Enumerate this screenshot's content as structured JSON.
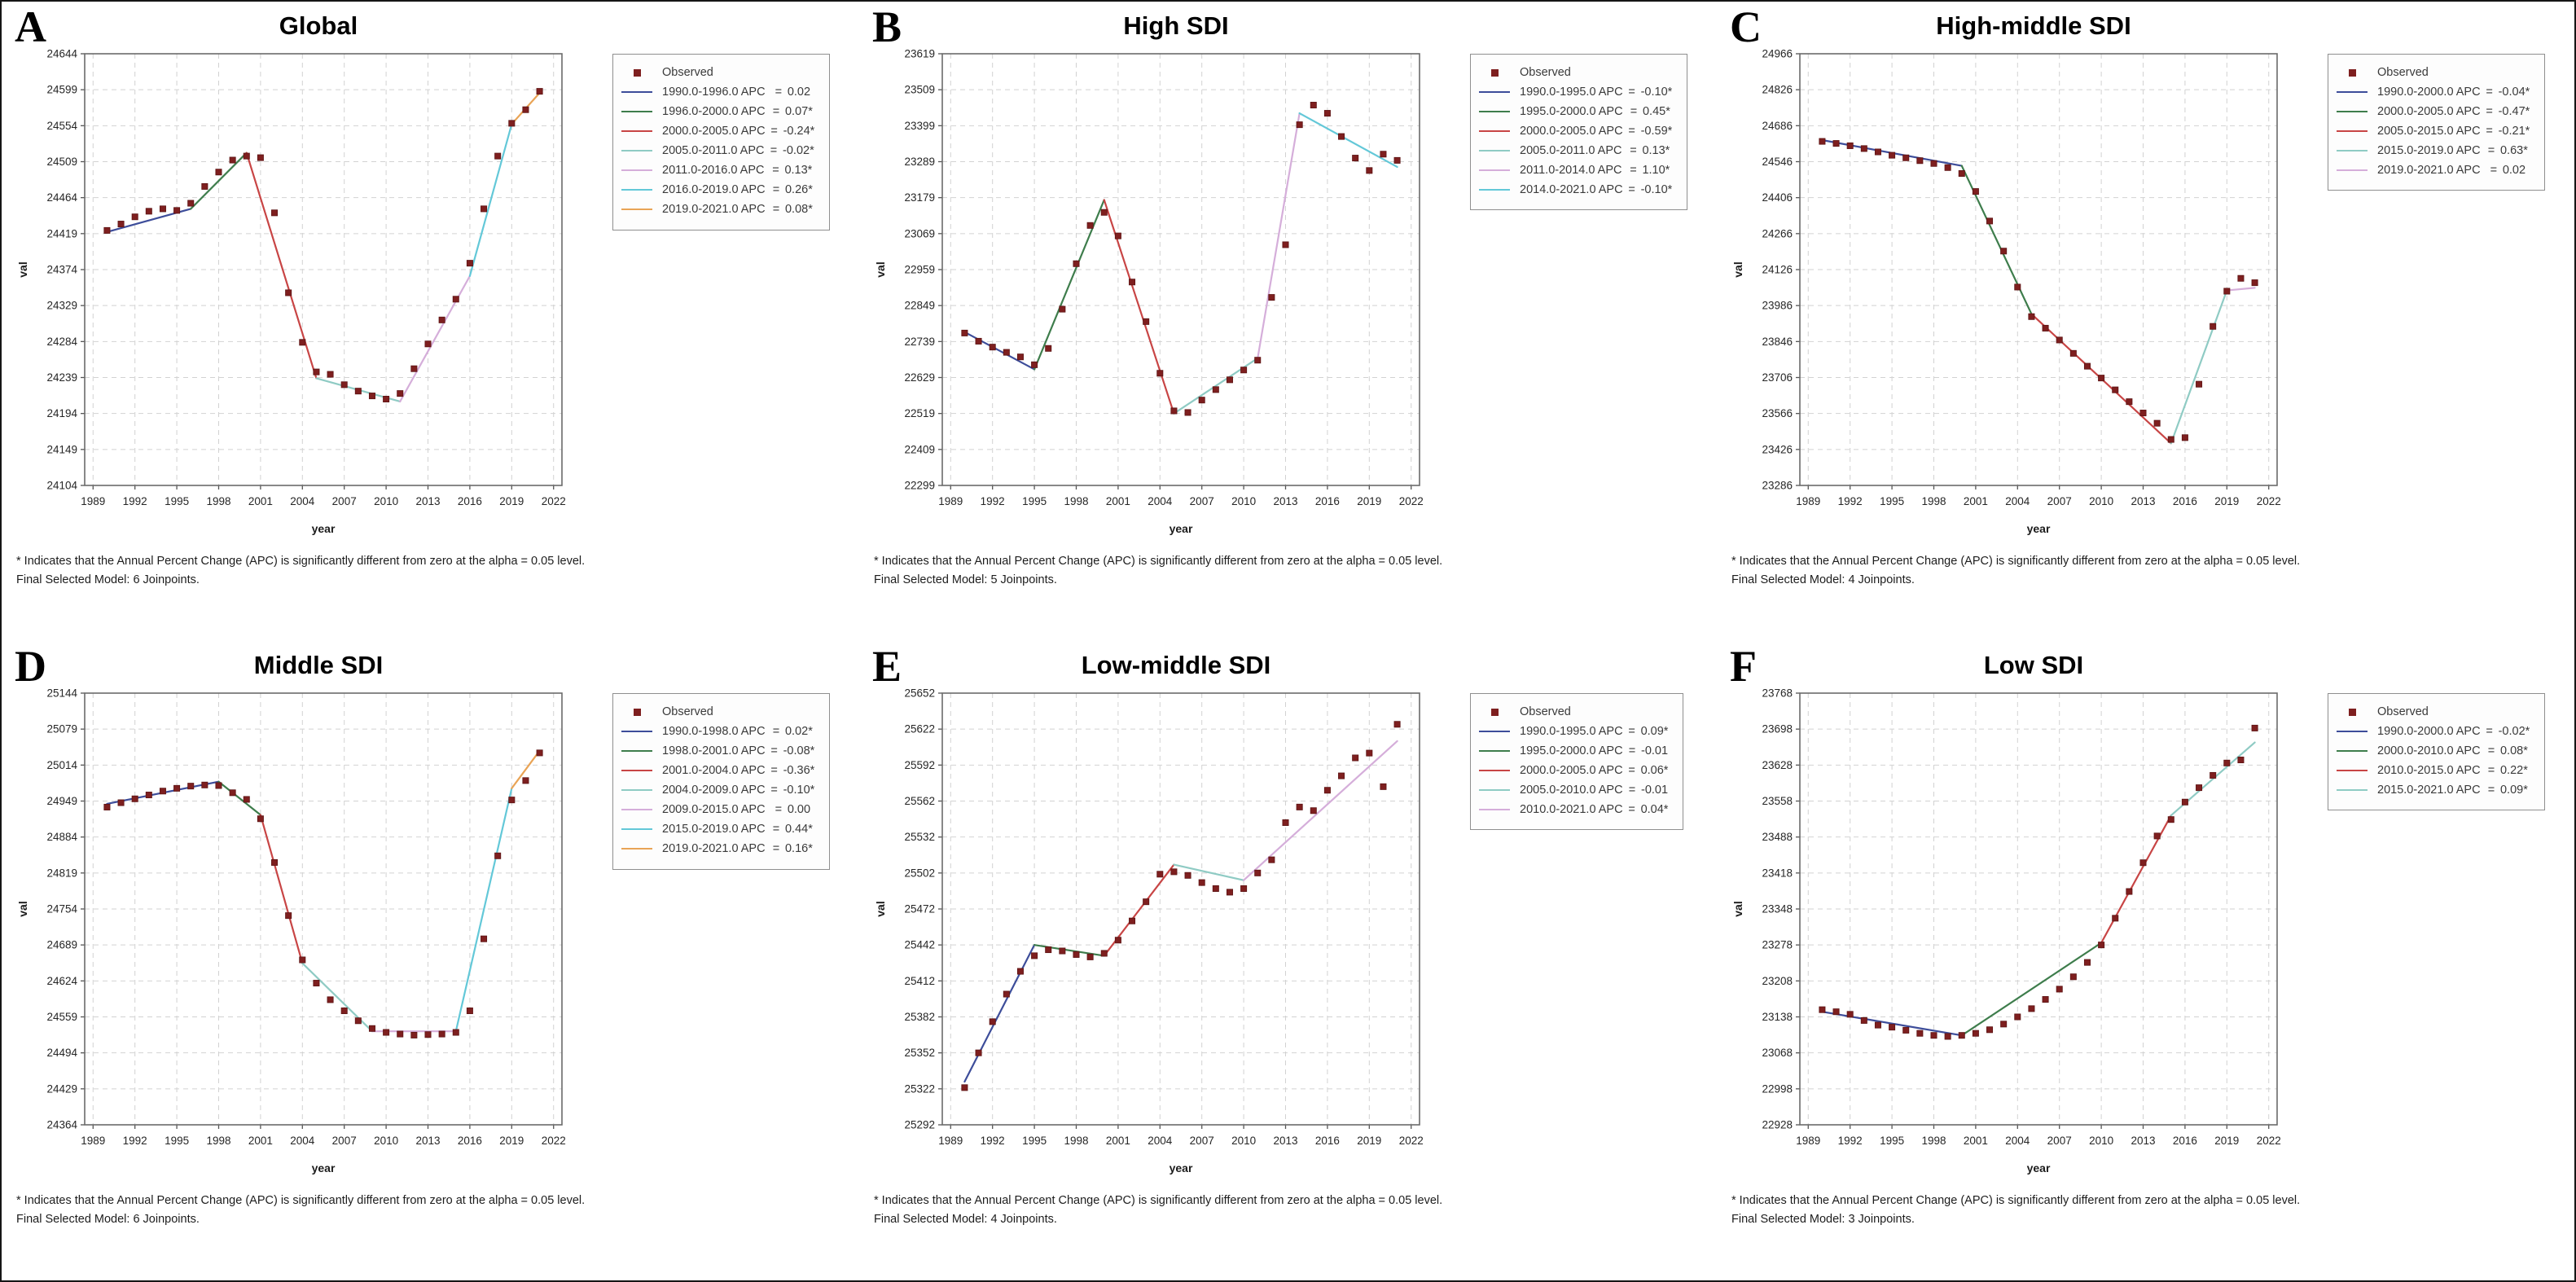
{
  "figure": {
    "background": "#ffffff",
    "observed_marker_color": "#7e1f1f",
    "grid_color": "#d2d2d2",
    "axis_color": "#6a6a6a"
  },
  "chart_data": [
    {
      "letter": "A",
      "type": "line",
      "title": "Global",
      "xlabel": "year",
      "ylabel": "val",
      "xlim": [
        1989,
        2022
      ],
      "ylim": [
        24104,
        24644
      ],
      "x_ticks": [
        1989,
        1992,
        1995,
        1998,
        2001,
        2004,
        2007,
        2010,
        2013,
        2016,
        2019,
        2022
      ],
      "y_ticks": [
        24644,
        24599,
        24554,
        24509,
        24464,
        24419,
        24374,
        24329,
        24284,
        24239,
        24194,
        24149,
        24104
      ],
      "legend": {
        "observed_label": "Observed",
        "segments": [
          {
            "label": "1990.0-1996.0 APC",
            "value": "0.02",
            "color": "#3d4d9a"
          },
          {
            "label": "1996.0-2000.0 APC",
            "value": "0.07*",
            "color": "#3e7d4c"
          },
          {
            "label": "2000.0-2005.0 APC",
            "value": "-0.24*",
            "color": "#c84545"
          },
          {
            "label": "2005.0-2011.0 APC",
            "value": "-0.02*",
            "color": "#8fcbc4"
          },
          {
            "label": "2011.0-2016.0 APC",
            "value": "0.13*",
            "color": "#d5aeda"
          },
          {
            "label": "2016.0-2019.0 APC",
            "value": "0.26*",
            "color": "#63c8d8"
          },
          {
            "label": "2019.0-2021.0 APC",
            "value": "0.08*",
            "color": "#e9a456"
          }
        ]
      },
      "observed": {
        "start_year": 1990,
        "values": [
          24423,
          24431,
          24440,
          24447,
          24450,
          24448,
          24457,
          24478,
          24496,
          24511,
          24516,
          24514,
          24445,
          24345,
          24283,
          24246,
          24243,
          24230,
          24222,
          24216,
          24212,
          24219,
          24250,
          24281,
          24311,
          24337,
          24382,
          24450,
          24516,
          24557,
          24574,
          24597
        ]
      },
      "fit": {
        "points": [
          [
            1990,
            24421
          ],
          [
            1996,
            24450
          ],
          [
            2000,
            24520
          ],
          [
            2005,
            24238
          ],
          [
            2011,
            24209
          ],
          [
            2016,
            24366
          ],
          [
            2019,
            24556
          ],
          [
            2021,
            24595
          ]
        ],
        "colors": [
          "#3d4d9a",
          "#3e7d4c",
          "#c84545",
          "#8fcbc4",
          "#d5aeda",
          "#63c8d8",
          "#e9a456"
        ]
      },
      "footnotes": [
        "* Indicates that the Annual Percent Change (APC) is significantly different from zero at the alpha = 0.05 level.",
        "Final Selected Model: 6 Joinpoints."
      ]
    },
    {
      "letter": "B",
      "type": "line",
      "title": "High SDI",
      "xlabel": "year",
      "ylabel": "val",
      "xlim": [
        1989,
        2022
      ],
      "ylim": [
        22299,
        23619
      ],
      "x_ticks": [
        1989,
        1992,
        1995,
        1998,
        2001,
        2004,
        2007,
        2010,
        2013,
        2016,
        2019,
        2022
      ],
      "y_ticks": [
        23619,
        23509,
        23399,
        23289,
        23179,
        23069,
        22959,
        22849,
        22739,
        22629,
        22519,
        22409,
        22299
      ],
      "legend": {
        "observed_label": "Observed",
        "segments": [
          {
            "label": "1990.0-1995.0 APC",
            "value": "-0.10*",
            "color": "#3d4d9a"
          },
          {
            "label": "1995.0-2000.0 APC",
            "value": "0.45*",
            "color": "#3e7d4c"
          },
          {
            "label": "2000.0-2005.0 APC",
            "value": "-0.59*",
            "color": "#c84545"
          },
          {
            "label": "2005.0-2011.0 APC",
            "value": "0.13*",
            "color": "#8fcbc4"
          },
          {
            "label": "2011.0-2014.0 APC",
            "value": "1.10*",
            "color": "#d5aeda"
          },
          {
            "label": "2014.0-2021.0 APC",
            "value": "-0.10*",
            "color": "#63c8d8"
          }
        ]
      },
      "observed": {
        "start_year": 1990,
        "values": [
          22765,
          22740,
          22722,
          22706,
          22692,
          22668,
          22718,
          22838,
          22977,
          23094,
          23134,
          23062,
          22921,
          22800,
          22642,
          22527,
          22522,
          22560,
          22592,
          22622,
          22652,
          22682,
          22874,
          23035,
          23402,
          23462,
          23437,
          23366,
          23300,
          23262,
          23312,
          23293
        ]
      },
      "fit": {
        "points": [
          [
            1990,
            22768
          ],
          [
            1995,
            22654
          ],
          [
            2000,
            23172
          ],
          [
            2005,
            22519
          ],
          [
            2011,
            22688
          ],
          [
            2014,
            23437
          ],
          [
            2021,
            23273
          ]
        ],
        "colors": [
          "#3d4d9a",
          "#3e7d4c",
          "#c84545",
          "#8fcbc4",
          "#d5aeda",
          "#63c8d8"
        ]
      },
      "footnotes": [
        "* Indicates that the Annual Percent Change (APC) is significantly different from zero at the alpha = 0.05 level.",
        "Final Selected Model: 5 Joinpoints."
      ]
    },
    {
      "letter": "C",
      "type": "line",
      "title": "High-middle SDI",
      "xlabel": "year",
      "ylabel": "val",
      "xlim": [
        1989,
        2022
      ],
      "ylim": [
        23286,
        24966
      ],
      "x_ticks": [
        1989,
        1992,
        1995,
        1998,
        2001,
        2004,
        2007,
        2010,
        2013,
        2016,
        2019,
        2022
      ],
      "y_ticks": [
        24966,
        24826,
        24686,
        24546,
        24406,
        24266,
        24126,
        23986,
        23846,
        23706,
        23566,
        23426,
        23286
      ],
      "legend": {
        "observed_label": "Observed",
        "segments": [
          {
            "label": "1990.0-2000.0 APC",
            "value": "-0.04*",
            "color": "#3d4d9a"
          },
          {
            "label": "2000.0-2005.0 APC",
            "value": "-0.47*",
            "color": "#3e7d4c"
          },
          {
            "label": "2005.0-2015.0 APC",
            "value": "-0.21*",
            "color": "#c84545"
          },
          {
            "label": "2015.0-2019.0 APC",
            "value": "0.63*",
            "color": "#8fcbc4"
          },
          {
            "label": "2019.0-2021.0 APC",
            "value": "0.02",
            "color": "#d5aeda"
          }
        ]
      },
      "observed": {
        "start_year": 1990,
        "values": [
          24625,
          24617,
          24608,
          24597,
          24584,
          24571,
          24561,
          24550,
          24539,
          24523,
          24500,
          24430,
          24315,
          24198,
          24058,
          23943,
          23898,
          23852,
          23800,
          23750,
          23704,
          23658,
          23612,
          23568,
          23528,
          23465,
          23472,
          23680,
          23905,
          24042,
          24092,
          24075
        ]
      },
      "fit": {
        "points": [
          [
            1990,
            24630
          ],
          [
            2000,
            24530
          ],
          [
            2005,
            23953
          ],
          [
            2015,
            23450
          ],
          [
            2019,
            24045
          ],
          [
            2021,
            24055
          ]
        ],
        "colors": [
          "#3d4d9a",
          "#3e7d4c",
          "#c84545",
          "#8fcbc4",
          "#d5aeda"
        ]
      },
      "footnotes": [
        "* Indicates that the Annual Percent Change (APC) is significantly different from zero at the alpha = 0.05 level.",
        "Final Selected Model: 4 Joinpoints."
      ]
    },
    {
      "letter": "D",
      "type": "line",
      "title": "Middle SDI",
      "xlabel": "year",
      "ylabel": "val",
      "xlim": [
        1989,
        2022
      ],
      "ylim": [
        24364,
        25144
      ],
      "x_ticks": [
        1989,
        1992,
        1995,
        1998,
        2001,
        2004,
        2007,
        2010,
        2013,
        2016,
        2019,
        2022
      ],
      "y_ticks": [
        25144,
        25079,
        25014,
        24949,
        24884,
        24819,
        24754,
        24689,
        24624,
        24559,
        24494,
        24429,
        24364
      ],
      "legend": {
        "observed_label": "Observed",
        "segments": [
          {
            "label": "1990.0-1998.0 APC",
            "value": "0.02*",
            "color": "#3d4d9a"
          },
          {
            "label": "1998.0-2001.0 APC",
            "value": "-0.08*",
            "color": "#3e7d4c"
          },
          {
            "label": "2001.0-2004.0 APC",
            "value": "-0.36*",
            "color": "#c84545"
          },
          {
            "label": "2004.0-2009.0 APC",
            "value": "-0.10*",
            "color": "#8fcbc4"
          },
          {
            "label": "2009.0-2015.0 APC",
            "value": "0.00",
            "color": "#d5aeda"
          },
          {
            "label": "2015.0-2019.0 APC",
            "value": "0.44*",
            "color": "#63c8d8"
          },
          {
            "label": "2019.0-2021.0 APC",
            "value": "0.16*",
            "color": "#e9a456"
          }
        ]
      },
      "observed": {
        "start_year": 1990,
        "values": [
          24938,
          24946,
          24953,
          24960,
          24967,
          24972,
          24976,
          24978,
          24977,
          24964,
          24952,
          24917,
          24838,
          24742,
          24662,
          24620,
          24590,
          24570,
          24552,
          24538,
          24531,
          24528,
          24526,
          24527,
          24528,
          24531,
          24570,
          24700,
          24850,
          24951,
          24986,
          25036
        ]
      },
      "fit": {
        "points": [
          [
            1990,
            24944
          ],
          [
            1998,
            24984
          ],
          [
            2001,
            24924
          ],
          [
            2004,
            24656
          ],
          [
            2009,
            24533
          ],
          [
            2015,
            24533
          ],
          [
            2019,
            24972
          ],
          [
            2021,
            25040
          ]
        ],
        "colors": [
          "#3d4d9a",
          "#3e7d4c",
          "#c84545",
          "#8fcbc4",
          "#d5aeda",
          "#63c8d8",
          "#e9a456"
        ]
      },
      "footnotes": [
        "* Indicates that the Annual Percent Change (APC) is significantly different from zero at the alpha = 0.05 level.",
        "Final Selected Model: 6 Joinpoints."
      ]
    },
    {
      "letter": "E",
      "type": "line",
      "title": "Low-middle SDI",
      "xlabel": "year",
      "ylabel": "val",
      "xlim": [
        1989,
        2022
      ],
      "ylim": [
        25292,
        25652
      ],
      "x_ticks": [
        1989,
        1992,
        1995,
        1998,
        2001,
        2004,
        2007,
        2010,
        2013,
        2016,
        2019,
        2022
      ],
      "y_ticks": [
        25652,
        25622,
        25592,
        25562,
        25532,
        25502,
        25472,
        25442,
        25412,
        25382,
        25352,
        25322,
        25292
      ],
      "legend": {
        "observed_label": "Observed",
        "segments": [
          {
            "label": "1990.0-1995.0 APC",
            "value": "0.09*",
            "color": "#3d4d9a"
          },
          {
            "label": "1995.0-2000.0 APC",
            "value": "-0.01",
            "color": "#3e7d4c"
          },
          {
            "label": "2000.0-2005.0 APC",
            "value": "0.06*",
            "color": "#c84545"
          },
          {
            "label": "2005.0-2010.0 APC",
            "value": "-0.01",
            "color": "#8fcbc4"
          },
          {
            "label": "2010.0-2021.0 APC",
            "value": "0.04*",
            "color": "#d5aeda"
          }
        ]
      },
      "observed": {
        "start_year": 1990,
        "values": [
          25323,
          25352,
          25378,
          25401,
          25420,
          25433,
          25438,
          25437,
          25434,
          25432,
          25435,
          25446,
          25462,
          25478,
          25501,
          25503,
          25500,
          25494,
          25489,
          25486,
          25489,
          25502,
          25513,
          25544,
          25557,
          25554,
          25571,
          25583,
          25598,
          25602,
          25574,
          25626
        ]
      },
      "fit": {
        "points": [
          [
            1990,
            25328
          ],
          [
            1995,
            25442
          ],
          [
            2000,
            25433
          ],
          [
            2005,
            25509
          ],
          [
            2010,
            25496
          ],
          [
            2021,
            25612
          ]
        ],
        "colors": [
          "#3d4d9a",
          "#3e7d4c",
          "#c84545",
          "#8fcbc4",
          "#d5aeda"
        ]
      },
      "footnotes": [
        "* Indicates that the Annual Percent Change (APC) is significantly different from zero at the alpha = 0.05 level.",
        "Final Selected Model: 4 Joinpoints."
      ]
    },
    {
      "letter": "F",
      "type": "line",
      "title": "Low SDI",
      "xlabel": "year",
      "ylabel": "val",
      "xlim": [
        1989,
        2022
      ],
      "ylim": [
        22928,
        23768
      ],
      "x_ticks": [
        1989,
        1992,
        1995,
        1998,
        2001,
        2004,
        2007,
        2010,
        2013,
        2016,
        2019,
        2022
      ],
      "y_ticks": [
        23768,
        23698,
        23628,
        23558,
        23488,
        23418,
        23348,
        23278,
        23208,
        23138,
        23068,
        22998,
        22928
      ],
      "legend": {
        "observed_label": "Observed",
        "segments": [
          {
            "label": "1990.0-2000.0 APC",
            "value": "-0.02*",
            "color": "#3d4d9a"
          },
          {
            "label": "2000.0-2010.0 APC",
            "value": "0.08*",
            "color": "#3e7d4c"
          },
          {
            "label": "2010.0-2015.0 APC",
            "value": "0.22*",
            "color": "#c84545"
          },
          {
            "label": "2015.0-2021.0 APC",
            "value": "0.09*",
            "color": "#8fcbc4"
          }
        ]
      },
      "observed": {
        "start_year": 1990,
        "values": [
          23152,
          23148,
          23143,
          23131,
          23122,
          23118,
          23112,
          23106,
          23102,
          23100,
          23102,
          23106,
          23113,
          23124,
          23138,
          23154,
          23172,
          23192,
          23216,
          23244,
          23278,
          23330,
          23382,
          23438,
          23490,
          23522,
          23556,
          23584,
          23608,
          23632,
          23638,
          23700
        ]
      },
      "fit": {
        "points": [
          [
            1990,
            23148
          ],
          [
            2000,
            23102
          ],
          [
            2010,
            23282
          ],
          [
            2015,
            23530
          ],
          [
            2021,
            23672
          ]
        ],
        "colors": [
          "#3d4d9a",
          "#3e7d4c",
          "#c84545",
          "#8fcbc4"
        ]
      },
      "footnotes": [
        "* Indicates that the Annual Percent Change (APC) is significantly different from zero at the alpha = 0.05 level.",
        "Final Selected Model: 3 Joinpoints."
      ]
    }
  ]
}
